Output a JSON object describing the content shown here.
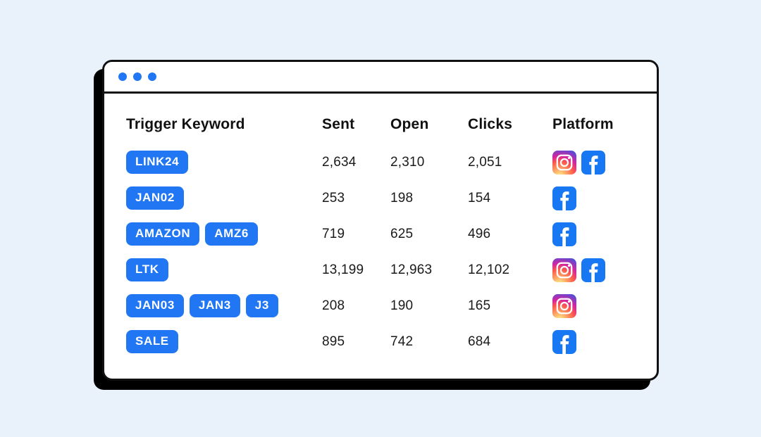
{
  "window": {
    "dot_count": 3
  },
  "table": {
    "headers": [
      "Trigger Keyword",
      "Sent",
      "Open",
      "Clicks",
      "Platform"
    ],
    "rows": [
      {
        "keywords": [
          "LINK24"
        ],
        "sent": "2,634",
        "open": "2,310",
        "clicks": "2,051",
        "platforms": [
          "instagram",
          "facebook"
        ]
      },
      {
        "keywords": [
          "JAN02"
        ],
        "sent": "253",
        "open": "198",
        "clicks": "154",
        "platforms": [
          "facebook"
        ]
      },
      {
        "keywords": [
          "AMAZON",
          "AMZ6"
        ],
        "sent": "719",
        "open": "625",
        "clicks": "496",
        "platforms": [
          "facebook"
        ]
      },
      {
        "keywords": [
          "LTK"
        ],
        "sent": "13,199",
        "open": "12,963",
        "clicks": "12,102",
        "platforms": [
          "instagram",
          "facebook"
        ]
      },
      {
        "keywords": [
          "JAN03",
          "JAN3",
          "J3"
        ],
        "sent": "208",
        "open": "190",
        "clicks": "165",
        "platforms": [
          "instagram"
        ]
      },
      {
        "keywords": [
          "SALE"
        ],
        "sent": "895",
        "open": "742",
        "clicks": "684",
        "platforms": [
          "facebook"
        ]
      }
    ]
  },
  "colors": {
    "accent": "#2176f3",
    "facebook": "#1877f2",
    "background": "#e9f1fb",
    "border": "#111111"
  }
}
